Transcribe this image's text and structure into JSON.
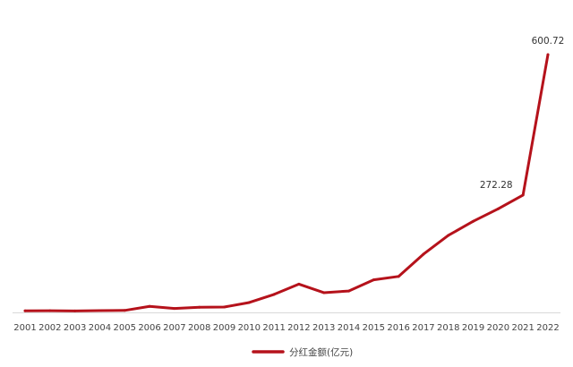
{
  "chart_data": {
    "type": "line",
    "title": "",
    "xlabel": "",
    "ylabel": "",
    "categories": [
      "2001",
      "2002",
      "2003",
      "2004",
      "2005",
      "2006",
      "2007",
      "2008",
      "2009",
      "2010",
      "2011",
      "2012",
      "2013",
      "2014",
      "2015",
      "2016",
      "2017",
      "2018",
      "2019",
      "2020",
      "2021",
      "2022"
    ],
    "series": [
      {
        "name": "分红金额(亿元)",
        "color": "#b5121b",
        "values": [
          1.5,
          1.8,
          1.2,
          2.0,
          2.5,
          12.0,
          7.0,
          10.0,
          10.5,
          21.0,
          40.0,
          64.0,
          44.0,
          48.0,
          74.0,
          82.0,
          134.0,
          178.0,
          211.0,
          240.0,
          272.28,
          600.72
        ]
      }
    ],
    "data_labels": [
      {
        "category": "2021",
        "text": "272.28"
      },
      {
        "category": "2022",
        "text": "600.72"
      }
    ],
    "ylim": [
      0,
      600.72
    ],
    "grid": false,
    "axis_line_color": "#d9d9d9",
    "legend": {
      "position": "bottom",
      "label": "分红金额(亿元)"
    }
  }
}
